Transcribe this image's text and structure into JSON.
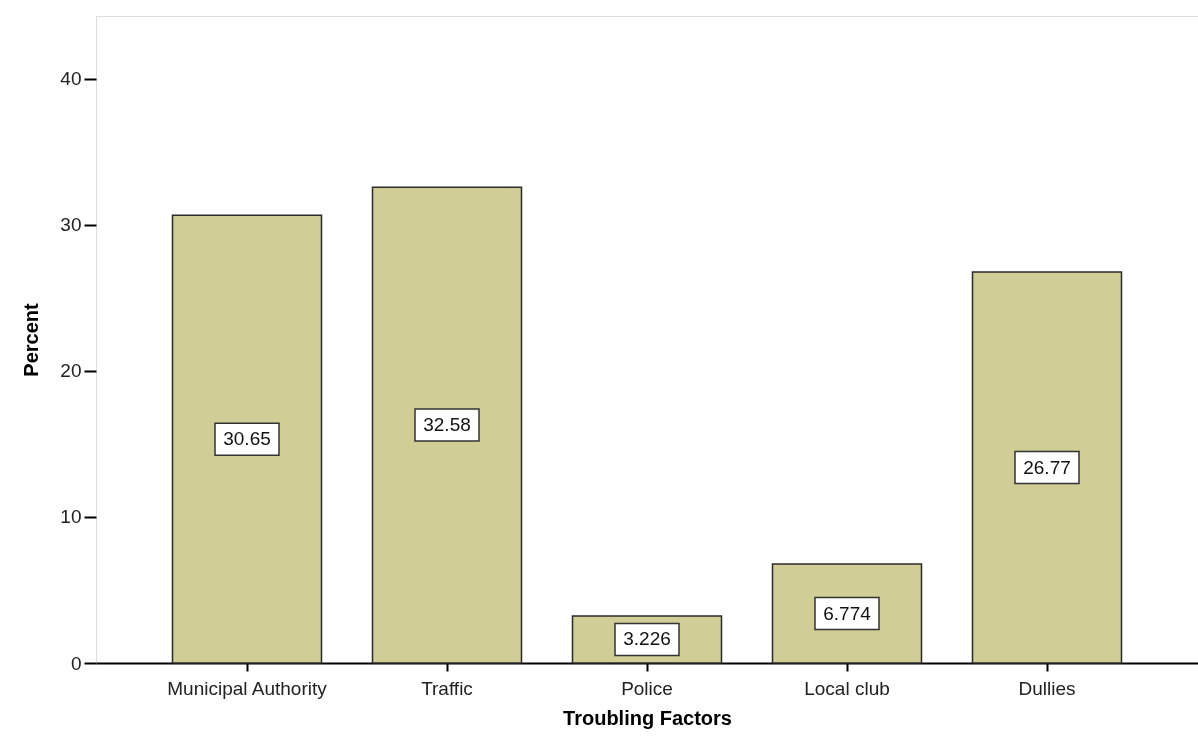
{
  "chart_data": {
    "type": "bar",
    "xlabel": "Troubling Factors",
    "ylabel": "Percent",
    "categories": [
      "Municipal Authority",
      "Traffic",
      "Police",
      "Local club",
      "Dullies"
    ],
    "values": [
      30.65,
      32.58,
      3.226,
      6.774,
      26.77
    ],
    "color": "#d0cd96",
    "ylim": [
      0,
      44.3
    ],
    "yticks": [
      0,
      10,
      20,
      30,
      40
    ],
    "data_labels": true,
    "grid": false
  }
}
